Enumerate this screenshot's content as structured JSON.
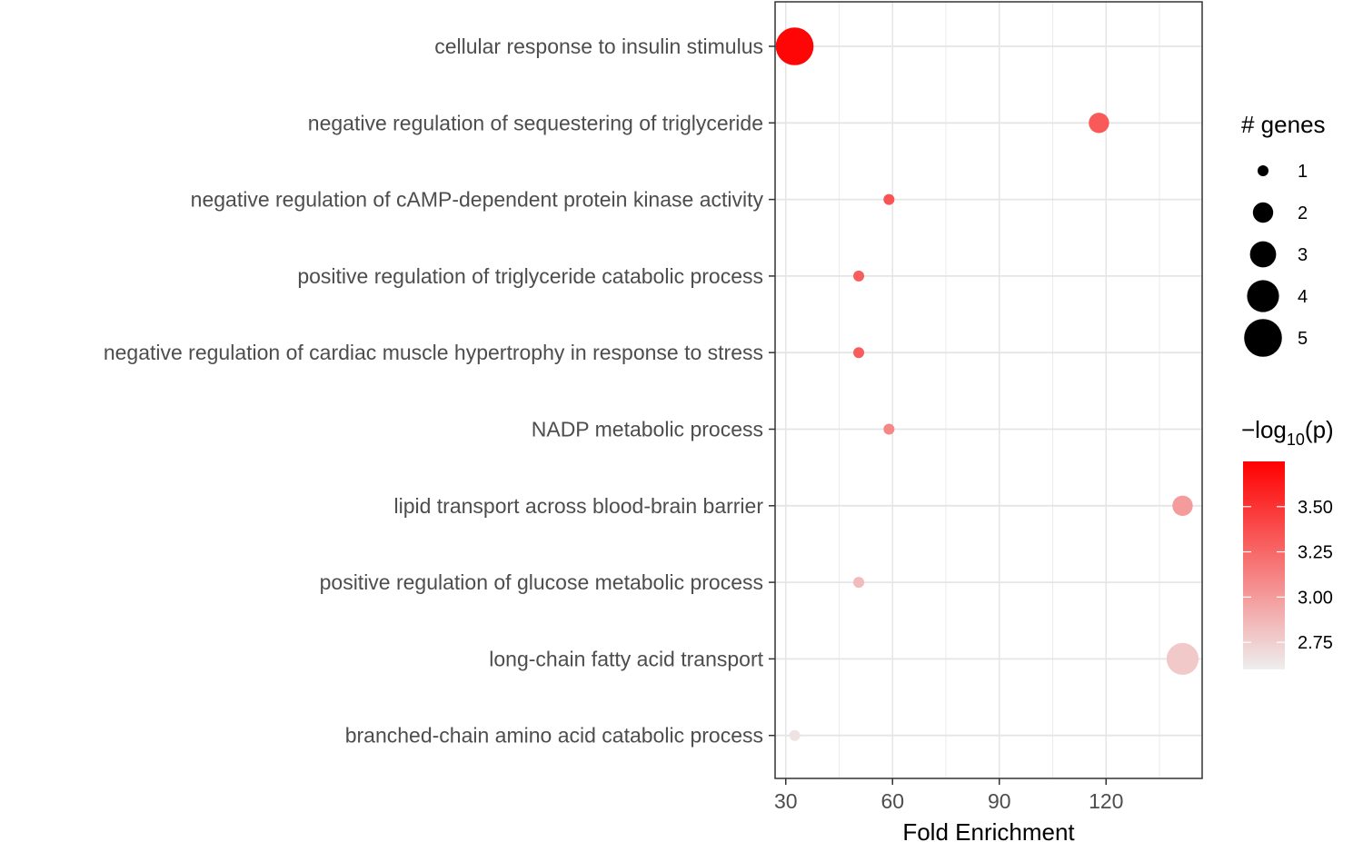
{
  "chart_data": {
    "type": "scatter",
    "xlabel": "Fold Enrichment",
    "ylabel": "",
    "xlim": [
      27,
      147
    ],
    "x_ticks": [
      30,
      60,
      90,
      120
    ],
    "categories": [
      "cellular response to insulin stimulus",
      "negative regulation of sequestering of triglyceride",
      "negative regulation of cAMP-dependent protein kinase activity",
      "positive regulation of triglyceride catabolic process",
      "negative regulation of cardiac muscle hypertrophy in response to stress",
      "NADP metabolic process",
      "lipid transport across blood-brain barrier",
      "positive regulation of glucose metabolic process",
      "long-chain fatty acid transport",
      "branched-chain amino acid catabolic process"
    ],
    "points": [
      {
        "category": "cellular response to insulin stimulus",
        "fold_enrichment": 32.5,
        "genes": 5,
        "neg_log10_p": 3.72
      },
      {
        "category": "negative regulation of sequestering of triglyceride",
        "fold_enrichment": 118,
        "genes": 2,
        "neg_log10_p": 3.32
      },
      {
        "category": "negative regulation of cAMP-dependent protein kinase activity",
        "fold_enrichment": 59,
        "genes": 1,
        "neg_log10_p": 3.35
      },
      {
        "category": "positive regulation of triglyceride catabolic process",
        "fold_enrichment": 50.5,
        "genes": 1,
        "neg_log10_p": 3.3
      },
      {
        "category": "negative regulation of cardiac muscle hypertrophy in response to stress",
        "fold_enrichment": 50.5,
        "genes": 1,
        "neg_log10_p": 3.3
      },
      {
        "category": "NADP metabolic process",
        "fold_enrichment": 59,
        "genes": 1,
        "neg_log10_p": 3.1
      },
      {
        "category": "lipid transport across blood-brain barrier",
        "fold_enrichment": 141.5,
        "genes": 2,
        "neg_log10_p": 3.0
      },
      {
        "category": "positive regulation of glucose metabolic process",
        "fold_enrichment": 50.5,
        "genes": 1,
        "neg_log10_p": 2.85
      },
      {
        "category": "long-chain fatty acid transport",
        "fold_enrichment": 141.5,
        "genes": 4,
        "neg_log10_p": 2.78
      },
      {
        "category": "branched-chain amino acid catabolic process",
        "fold_enrichment": 32.5,
        "genes": 1,
        "neg_log10_p": 2.66
      }
    ],
    "grid": true,
    "size_legend": {
      "title": "# genes",
      "values": [
        1,
        2,
        3,
        4,
        5
      ],
      "labels": [
        "1",
        "2",
        "3",
        "4",
        "5"
      ]
    },
    "color_legend": {
      "title_prefix": "−log",
      "title_sub": "10",
      "title_suffix": "(p)",
      "range": [
        2.6,
        3.75
      ],
      "ticks": [
        3.5,
        3.25,
        3.0,
        2.75
      ],
      "tick_labels": [
        "3.50",
        "3.25",
        "3.00",
        "2.75"
      ],
      "low_color": "#eeeeee",
      "high_color": "#ff0000"
    },
    "legend_position": "right"
  }
}
